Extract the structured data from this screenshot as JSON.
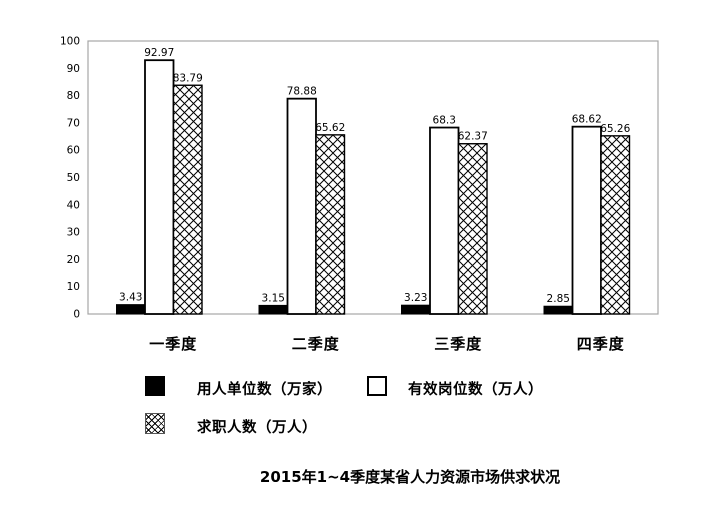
{
  "chart_data": {
    "type": "bar",
    "title": "2015年1~4季度某省人力资源市场供求状况",
    "categories": [
      "一季度",
      "二季度",
      "三季度",
      "四季度"
    ],
    "series": [
      {
        "name": "用人单位数（万家）",
        "pattern": "solid-black",
        "values": [
          3.43,
          3.15,
          3.23,
          2.85
        ],
        "labels": [
          "3.43",
          "3.15",
          "3.23",
          "2.85"
        ]
      },
      {
        "name": "有效岗位数（万人）",
        "pattern": "white-outline",
        "values": [
          92.97,
          78.88,
          68.3,
          68.62
        ],
        "labels": [
          "92.97",
          "78.88",
          "68.3",
          "68.62"
        ]
      },
      {
        "name": "求职人数（万人）",
        "pattern": "crosshatch",
        "values": [
          83.79,
          65.62,
          62.37,
          65.26
        ],
        "labels": [
          "83.79",
          "65.62",
          "62.37",
          "65.26"
        ]
      }
    ],
    "ylim": [
      0,
      100
    ],
    "yticks": [
      0,
      10,
      20,
      30,
      40,
      50,
      60,
      70,
      80,
      90,
      100
    ],
    "grid": false,
    "legend_position": "bottom",
    "xlabel": "",
    "ylabel": ""
  },
  "colors": {
    "bar_black": "#000000",
    "bar_white": "#ffffff",
    "bar_outline": "#000000",
    "axis_frame": "#a6a6a6",
    "text": "#000000",
    "background": "#ffffff"
  }
}
